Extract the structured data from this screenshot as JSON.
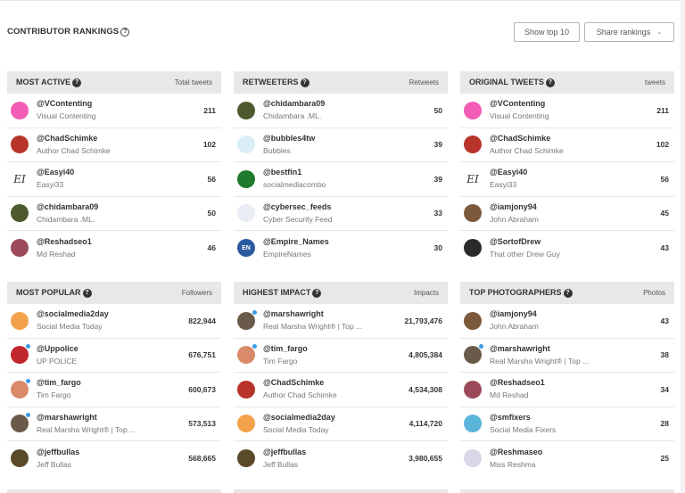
{
  "header": {
    "title": "CONTRIBUTOR RANKINGS",
    "help": "?",
    "show_top_label": "Show top 10",
    "share_label": "Share rankings",
    "share_chevron": "⌄"
  },
  "colors": {
    "verified": "#3b9be6",
    "panel_header": "#e8e8e8"
  },
  "panels": [
    {
      "title": "MOST ACTIVE",
      "column": "Total tweets",
      "rows": [
        {
          "handle": "@VContenting",
          "name": "Visual Contenting",
          "value": "211",
          "verified": false,
          "avatar_color": "#f25cb5",
          "avatar_text": ""
        },
        {
          "handle": "@ChadSchimke",
          "name": "Author Chad Schimke",
          "value": "102",
          "verified": false,
          "avatar_color": "#b8342a",
          "avatar_text": ""
        },
        {
          "handle": "@Easyi40",
          "name": "Easyi33",
          "value": "56",
          "verified": false,
          "avatar_color": "#ffffff",
          "avatar_text": "EI"
        },
        {
          "handle": "@chidambara09",
          "name": "Chidambara .ML.",
          "value": "50",
          "verified": false,
          "avatar_color": "#4d5a2e",
          "avatar_text": ""
        },
        {
          "handle": "@Reshadseo1",
          "name": "Md Reshad",
          "value": "46",
          "verified": false,
          "avatar_color": "#9c4a5a",
          "avatar_text": ""
        }
      ]
    },
    {
      "title": "RETWEETERS",
      "column": "Retweets",
      "rows": [
        {
          "handle": "@chidambara09",
          "name": "Chidambara .ML.",
          "value": "50",
          "verified": false,
          "avatar_color": "#4d5a2e",
          "avatar_text": ""
        },
        {
          "handle": "@bubbles4tw",
          "name": "Bubbles",
          "value": "39",
          "verified": false,
          "avatar_color": "#d9eef7",
          "avatar_text": ""
        },
        {
          "handle": "@bestfin1",
          "name": "socialmediacombo",
          "value": "39",
          "verified": false,
          "avatar_color": "#1f7a2e",
          "avatar_text": ""
        },
        {
          "handle": "@cybersec_feeds",
          "name": "Cyber Security Feed",
          "value": "33",
          "verified": false,
          "avatar_color": "#e9eef4",
          "avatar_text": ""
        },
        {
          "handle": "@Empire_Names",
          "name": "EmpireNames",
          "value": "30",
          "verified": false,
          "avatar_color": "#2c5aa0",
          "avatar_text": "EN"
        }
      ]
    },
    {
      "title": "ORIGINAL TWEETS",
      "column": "tweets",
      "rows": [
        {
          "handle": "@VContenting",
          "name": "Visual Contenting",
          "value": "211",
          "verified": false,
          "avatar_color": "#f25cb5",
          "avatar_text": ""
        },
        {
          "handle": "@ChadSchimke",
          "name": "Author Chad Schimke",
          "value": "102",
          "verified": false,
          "avatar_color": "#b8342a",
          "avatar_text": ""
        },
        {
          "handle": "@Easyi40",
          "name": "Easyi33",
          "value": "56",
          "verified": false,
          "avatar_color": "#ffffff",
          "avatar_text": "EI"
        },
        {
          "handle": "@iamjony94",
          "name": "John Abraham",
          "value": "45",
          "verified": false,
          "avatar_color": "#7a5a3a",
          "avatar_text": ""
        },
        {
          "handle": "@SortofDrew",
          "name": "That other Drew Guy",
          "value": "43",
          "verified": false,
          "avatar_color": "#2a2a2a",
          "avatar_text": ""
        }
      ]
    },
    {
      "title": "MOST POPULAR",
      "column": "Followers",
      "rows": [
        {
          "handle": "@socialmedia2day",
          "name": "Social Media Today",
          "value": "822,944",
          "verified": false,
          "avatar_color": "#f3a24b",
          "avatar_text": ""
        },
        {
          "handle": "@Uppolice",
          "name": "UP POLICE",
          "value": "676,751",
          "verified": true,
          "avatar_color": "#c0282d",
          "avatar_text": ""
        },
        {
          "handle": "@tim_fargo",
          "name": "Tim Fargo",
          "value": "600,673",
          "verified": true,
          "avatar_color": "#d98a6a",
          "avatar_text": ""
        },
        {
          "handle": "@marshawright",
          "name": "Real Marsha Wright® | Top ...",
          "value": "573,513",
          "verified": true,
          "avatar_color": "#6a5a4a",
          "avatar_text": ""
        },
        {
          "handle": "@jeffbullas",
          "name": "Jeff Bullas",
          "value": "568,665",
          "verified": false,
          "avatar_color": "#5a4a2a",
          "avatar_text": ""
        }
      ]
    },
    {
      "title": "HIGHEST IMPACT",
      "column": "Impacts",
      "rows": [
        {
          "handle": "@marshawright",
          "name": "Real Marsha Wright® | Top ...",
          "value": "21,793,476",
          "verified": true,
          "avatar_color": "#6a5a4a",
          "avatar_text": ""
        },
        {
          "handle": "@tim_fargo",
          "name": "Tim Fargo",
          "value": "4,805,384",
          "verified": true,
          "avatar_color": "#d98a6a",
          "avatar_text": ""
        },
        {
          "handle": "@ChadSchimke",
          "name": "Author Chad Schimke",
          "value": "4,534,308",
          "verified": false,
          "avatar_color": "#b8342a",
          "avatar_text": ""
        },
        {
          "handle": "@socialmedia2day",
          "name": "Social Media Today",
          "value": "4,114,720",
          "verified": false,
          "avatar_color": "#f3a24b",
          "avatar_text": ""
        },
        {
          "handle": "@jeffbullas",
          "name": "Jeff Bullas",
          "value": "3,980,655",
          "verified": false,
          "avatar_color": "#5a4a2a",
          "avatar_text": ""
        }
      ]
    },
    {
      "title": "TOP PHOTOGRAPHERS",
      "column": "Photos",
      "rows": [
        {
          "handle": "@iamjony94",
          "name": "John Abraham",
          "value": "43",
          "verified": false,
          "avatar_color": "#7a5a3a",
          "avatar_text": ""
        },
        {
          "handle": "@marshawright",
          "name": "Real Marsha Wright® | Top ...",
          "value": "38",
          "verified": true,
          "avatar_color": "#6a5a4a",
          "avatar_text": ""
        },
        {
          "handle": "@Reshadseo1",
          "name": "Md Reshad",
          "value": "34",
          "verified": false,
          "avatar_color": "#9c4a5a",
          "avatar_text": ""
        },
        {
          "handle": "@smfixers",
          "name": "Social Media Fixers",
          "value": "28",
          "verified": false,
          "avatar_color": "#5bb5d9",
          "avatar_text": ""
        },
        {
          "handle": "@Reshmaseo",
          "name": "Miss Reshma",
          "value": "25",
          "verified": false,
          "avatar_color": "#d8d8e8",
          "avatar_text": ""
        }
      ]
    }
  ]
}
